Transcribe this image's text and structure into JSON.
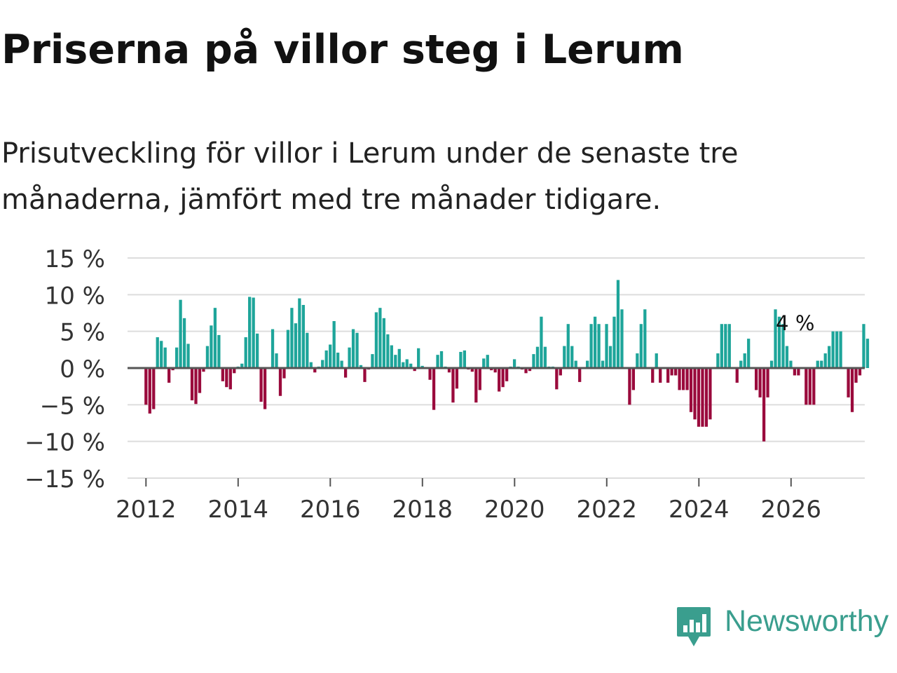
{
  "title": "Priserna på villor steg i Lerum",
  "subtitle": "Prisutveckling för villor i Lerum under de senaste tre månaderna, jämfört med tre månader tidigare.",
  "brand": {
    "name": "Newsworthy",
    "color": "#3a9e8e",
    "icon": "newsworthy-logo-icon"
  },
  "colors": {
    "positive": "#1ea59a",
    "negative": "#9a0a3c",
    "grid": "#dddddd",
    "axis": "#555555"
  },
  "chart_data": {
    "type": "bar",
    "title": "Priserna på villor steg i Lerum",
    "subtitle": "Prisutveckling för villor i Lerum under de senaste tre månaderna, jämfört med tre månader tidigare.",
    "xlabel": "",
    "ylabel": "",
    "ylim": [
      -15,
      15
    ],
    "yticks": [
      15,
      10,
      5,
      0,
      -5,
      -10,
      -15
    ],
    "ytick_labels": [
      "15 %",
      "10 %",
      "5 %",
      "0 %",
      "−5 %",
      "−10 %",
      "−15 %"
    ],
    "xlim": [
      2011.6,
      2027.6
    ],
    "xticks": [
      2012,
      2014,
      2016,
      2018,
      2020,
      2022,
      2024,
      2026
    ],
    "xtick_labels": [
      "2012",
      "2014",
      "2016",
      "2018",
      "2020",
      "2022",
      "2024",
      "2026"
    ],
    "grid": true,
    "annotation": {
      "text": "4 %",
      "x": 2026.0,
      "y": 4
    },
    "start_x": 2012.0,
    "step": 0.0833,
    "values": [
      -5,
      -6.2,
      -5.6,
      4.2,
      3.7,
      2.8,
      -2,
      -0.3,
      2.8,
      9.3,
      6.8,
      3.3,
      -4.4,
      -4.9,
      -3.4,
      -0.5,
      3,
      5.8,
      8.2,
      4.5,
      -1.8,
      -2.6,
      -2.9,
      -0.7,
      0.2,
      0.6,
      4.2,
      9.7,
      9.6,
      4.7,
      -4.6,
      -5.6,
      0,
      5.3,
      2,
      -3.8,
      -1.4,
      5.2,
      8.2,
      6.1,
      9.5,
      8.6,
      4.8,
      0.8,
      -0.6,
      0.2,
      1.1,
      2.4,
      3.2,
      6.4,
      2.1,
      1,
      -1.3,
      2.8,
      5.3,
      4.8,
      0.4,
      -1.9,
      -0.2,
      1.9,
      7.6,
      8.2,
      6.8,
      4.6,
      3.1,
      1.8,
      2.6,
      0.8,
      1.2,
      0.6,
      -0.4,
      2.7,
      0.3,
      0.1,
      -1.6,
      -5.7,
      1.8,
      2.3,
      0.2,
      -0.6,
      -4.7,
      -2.8,
      2.2,
      2.4,
      -0.2,
      -0.5,
      -4.7,
      -3,
      1.3,
      1.8,
      -0.3,
      -0.6,
      -3.2,
      -2.6,
      -1.8,
      0.2,
      1.2,
      0.2,
      -0.2,
      -0.7,
      -0.4,
      1.9,
      2.9,
      7,
      2.9,
      0.2,
      0.2,
      -2.9,
      -1,
      3,
      6,
      3,
      1,
      -1.9,
      0,
      1,
      6,
      7,
      6,
      1,
      6,
      3,
      7,
      12,
      8,
      0,
      -5,
      -3,
      2,
      6,
      8,
      0,
      -2,
      2,
      -2,
      0,
      -2,
      -1,
      -1,
      -3,
      -3,
      -3,
      -6,
      -7,
      -8,
      -8,
      -8,
      -7,
      0,
      2,
      6,
      6,
      6,
      0,
      -2,
      1,
      2,
      4,
      0,
      -3,
      -4,
      -10,
      -4,
      1,
      8,
      7,
      6,
      3,
      1,
      -1,
      -1,
      0,
      -5,
      -5,
      -5,
      1,
      1,
      2,
      3,
      5,
      5,
      5,
      0,
      -4,
      -6,
      -2,
      -1,
      6,
      4
    ]
  }
}
